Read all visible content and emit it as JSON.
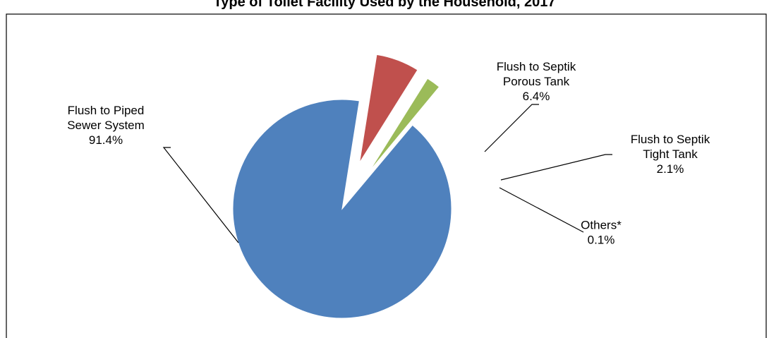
{
  "chart_data": {
    "type": "pie",
    "title": "Type of Toilet Facility Used by the Household, 2017",
    "slices": [
      {
        "label_lines": [
          "Flush to Piped",
          "Sewer System"
        ],
        "value": 91.4,
        "value_label": "91.4%",
        "color": "#4F81BD"
      },
      {
        "label_lines": [
          "Flush to Septik",
          "Porous Tank"
        ],
        "value": 6.4,
        "value_label": "6.4%",
        "color": "#C0504D"
      },
      {
        "label_lines": [
          "Flush to Septik",
          "Tight Tank"
        ],
        "value": 2.1,
        "value_label": "2.1%",
        "color": "#9BBB59"
      },
      {
        "label_lines": [
          "Others*"
        ],
        "value": 0.1,
        "value_label": "0.1%",
        "color": "#8064A2"
      }
    ],
    "legend": "none",
    "border_color": "#000000"
  }
}
